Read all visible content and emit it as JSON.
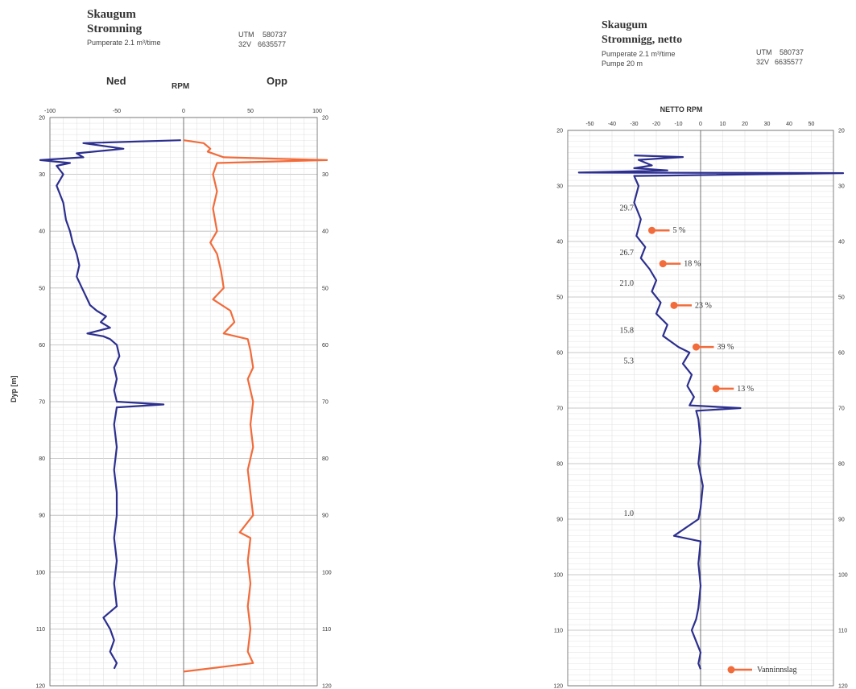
{
  "panels": {
    "left": {
      "title1": "Skaugum",
      "title2": "Stromning",
      "subtitle": "Pumperate 2.1 m³/time",
      "utm_label": "UTM",
      "utm_east": "580737",
      "zone": "32V",
      "utm_north": "6635577",
      "head_left": "Ned",
      "head_mid": "RPM",
      "head_right": "Opp",
      "ylabel": "Dyp [m]"
    },
    "right": {
      "title1": "Skaugum",
      "title2": "Stromnigg, netto",
      "subtitle1": "Pumperate 2.1 m³/time",
      "subtitle2": "Pumpe 20 m",
      "utm_label": "UTM",
      "utm_east": "580737",
      "zone": "32V",
      "utm_north": "6635577",
      "head": "NETTO RPM"
    }
  },
  "chart_data": [
    {
      "type": "line",
      "xlim": [
        -100,
        100
      ],
      "ylim": [
        20,
        120
      ],
      "y_inverted": true,
      "xticks": [
        "-100",
        "-50",
        "0",
        "50",
        "100"
      ],
      "yticks": [
        "20",
        "30",
        "40",
        "50",
        "60",
        "70",
        "80",
        "90",
        "100",
        "110",
        "120"
      ],
      "grid": true,
      "colors": {
        "ned": "#2c2f8e",
        "opp": "#f26b3a"
      },
      "series": [
        {
          "name": "Ned",
          "points": [
            [
              -2,
              24
            ],
            [
              -75,
              24.5
            ],
            [
              -45,
              25.5
            ],
            [
              -80,
              26.3
            ],
            [
              -75,
              27
            ],
            [
              -125,
              27.5
            ],
            [
              -85,
              28
            ],
            [
              -95,
              28.5
            ],
            [
              -90,
              30
            ],
            [
              -95,
              32
            ],
            [
              -90,
              35
            ],
            [
              -88,
              38
            ],
            [
              -85,
              40
            ],
            [
              -83,
              42
            ],
            [
              -80,
              44
            ],
            [
              -78,
              46
            ],
            [
              -80,
              48
            ],
            [
              -76,
              50
            ],
            [
              -72,
              52
            ],
            [
              -70,
              53
            ],
            [
              -65,
              54
            ],
            [
              -58,
              55
            ],
            [
              -62,
              56
            ],
            [
              -55,
              57
            ],
            [
              -72,
              58
            ],
            [
              -60,
              58.5
            ],
            [
              -55,
              59
            ],
            [
              -50,
              60
            ],
            [
              -48,
              62
            ],
            [
              -52,
              64
            ],
            [
              -50,
              66
            ],
            [
              -52,
              68
            ],
            [
              -50,
              70
            ],
            [
              -15,
              70.5
            ],
            [
              -50,
              71
            ],
            [
              -52,
              74
            ],
            [
              -50,
              78
            ],
            [
              -52,
              82
            ],
            [
              -50,
              86
            ],
            [
              -50,
              90
            ],
            [
              -52,
              94
            ],
            [
              -50,
              98
            ],
            [
              -52,
              102
            ],
            [
              -50,
              106
            ],
            [
              -60,
              108
            ],
            [
              -55,
              110
            ],
            [
              -52,
              112
            ],
            [
              -55,
              114
            ],
            [
              -50,
              116
            ],
            [
              -52,
              117
            ]
          ]
        },
        {
          "name": "Opp",
          "points": [
            [
              0,
              24
            ],
            [
              15,
              24.5
            ],
            [
              20,
              25.5
            ],
            [
              18,
              26
            ],
            [
              30,
              27
            ],
            [
              120,
              27.5
            ],
            [
              25,
              28
            ],
            [
              22,
              30
            ],
            [
              25,
              33
            ],
            [
              22,
              36
            ],
            [
              25,
              40
            ],
            [
              20,
              42
            ],
            [
              25,
              44
            ],
            [
              28,
              47
            ],
            [
              30,
              50
            ],
            [
              22,
              52
            ],
            [
              35,
              54
            ],
            [
              38,
              56
            ],
            [
              30,
              58
            ],
            [
              48,
              59
            ],
            [
              50,
              61
            ],
            [
              52,
              64
            ],
            [
              48,
              66
            ],
            [
              52,
              70
            ],
            [
              50,
              74
            ],
            [
              52,
              78
            ],
            [
              48,
              82
            ],
            [
              50,
              86
            ],
            [
              52,
              90
            ],
            [
              42,
              93
            ],
            [
              50,
              94
            ],
            [
              48,
              98
            ],
            [
              50,
              102
            ],
            [
              48,
              106
            ],
            [
              50,
              110
            ],
            [
              48,
              114
            ],
            [
              52,
              116
            ],
            [
              0,
              117.5
            ]
          ]
        }
      ]
    },
    {
      "type": "line",
      "title": "NETTO RPM",
      "xlim": [
        -60,
        60
      ],
      "ylim": [
        20,
        120
      ],
      "y_inverted": true,
      "xticks": [
        "-50",
        "-40",
        "-30",
        "-20",
        "-10",
        "0",
        "10",
        "20",
        "30",
        "40",
        "50"
      ],
      "yticks": [
        "20",
        "30",
        "40",
        "50",
        "60",
        "70",
        "80",
        "90",
        "100",
        "110",
        "120"
      ],
      "grid": true,
      "colors": {
        "netto": "#2c2f8e",
        "arrow": "#f26b3a"
      },
      "series": [
        {
          "name": "Netto",
          "points": [
            [
              -30,
              24.5
            ],
            [
              -8,
              24.8
            ],
            [
              -28,
              25.3
            ],
            [
              -22,
              26.3
            ],
            [
              -30,
              26.8
            ],
            [
              -15,
              27.2
            ],
            [
              -55,
              27.6
            ],
            [
              80,
              27.7
            ],
            [
              -30,
              28.2
            ],
            [
              -28,
              30
            ],
            [
              -30,
              33
            ],
            [
              -27,
              36
            ],
            [
              -29,
              39
            ],
            [
              -25,
              41
            ],
            [
              -27,
              43
            ],
            [
              -23,
              45
            ],
            [
              -20,
              47
            ],
            [
              -22,
              49
            ],
            [
              -18,
              51
            ],
            [
              -20,
              53
            ],
            [
              -15,
              55
            ],
            [
              -17,
              57
            ],
            [
              -10,
              59
            ],
            [
              -5,
              60
            ],
            [
              -8,
              62
            ],
            [
              -4,
              64
            ],
            [
              -6,
              66
            ],
            [
              -3,
              68
            ],
            [
              -5,
              69.5
            ],
            [
              18,
              70
            ],
            [
              -2,
              70.5
            ],
            [
              -1,
              72
            ],
            [
              0,
              76
            ],
            [
              -1,
              80
            ],
            [
              1,
              84
            ],
            [
              0,
              88
            ],
            [
              -1,
              90
            ],
            [
              -12,
              93
            ],
            [
              0,
              94
            ],
            [
              -1,
              98
            ],
            [
              0,
              102
            ],
            [
              -1,
              106
            ],
            [
              -2,
              108
            ],
            [
              -4,
              110
            ],
            [
              -2,
              112
            ],
            [
              0,
              114
            ],
            [
              -1,
              116
            ],
            [
              0,
              117
            ]
          ]
        }
      ],
      "depth_labels": [
        {
          "depth": 34,
          "text": "29.7"
        },
        {
          "depth": 42,
          "text": "26.7"
        },
        {
          "depth": 47.5,
          "text": "21.0"
        },
        {
          "depth": 56,
          "text": "15.8"
        },
        {
          "depth": 61.5,
          "text": "5.3"
        },
        {
          "depth": 89,
          "text": "1.0"
        }
      ],
      "inflows": [
        {
          "depth": 38,
          "x": -22,
          "text": "5 %"
        },
        {
          "depth": 44,
          "x": -17,
          "text": "18 %"
        },
        {
          "depth": 51.5,
          "x": -12,
          "text": "23 %"
        },
        {
          "depth": 59,
          "x": -2,
          "text": "39 %"
        },
        {
          "depth": 66.5,
          "x": 7,
          "text": "13 %"
        }
      ],
      "legend": {
        "text": "Vanninnslag",
        "placement": "bottom-right"
      }
    }
  ]
}
